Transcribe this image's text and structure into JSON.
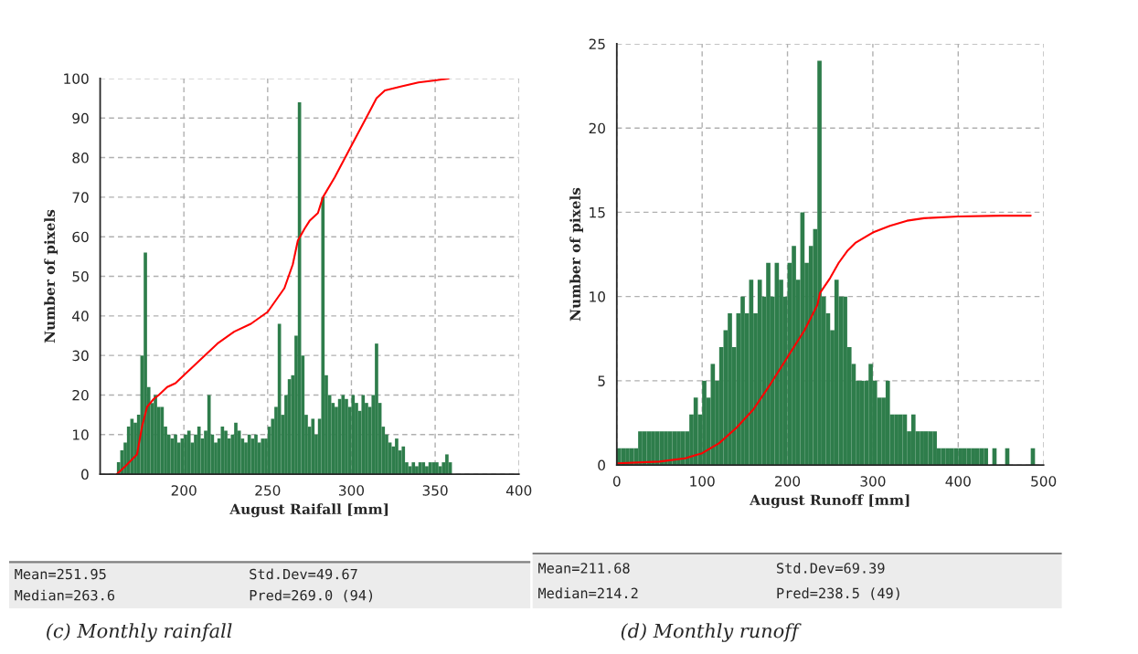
{
  "chart_data": [
    {
      "type": "histogram",
      "xlabel": "August Raifall [mm]",
      "ylabel": "Number of pixels",
      "series": [
        {
          "color": "#2e7d4b",
          "bins": [
            160,
            162,
            164,
            166,
            168,
            170,
            172,
            174,
            176,
            178,
            180,
            182,
            184,
            186,
            188,
            190,
            192,
            194,
            196,
            198,
            200,
            202,
            204,
            206,
            208,
            210,
            212,
            214,
            216,
            218,
            220,
            222,
            224,
            226,
            228,
            230,
            232,
            234,
            236,
            238,
            240,
            242,
            244,
            246,
            248,
            250,
            252,
            254,
            256,
            258,
            260,
            262,
            264,
            266,
            268,
            270,
            272,
            274,
            276,
            278,
            280,
            282,
            284,
            286,
            288,
            290,
            292,
            294,
            296,
            298,
            300,
            302,
            304,
            306,
            308,
            310,
            312,
            314,
            316,
            318,
            320,
            322,
            324,
            326,
            328,
            330,
            332,
            334,
            336,
            338,
            340,
            342,
            344,
            346,
            348,
            350,
            352,
            354,
            356,
            358,
            360
          ],
          "values": [
            3,
            6,
            8,
            12,
            14,
            13,
            15,
            30,
            56,
            22,
            18,
            20,
            17,
            17,
            12,
            10,
            9,
            10,
            8,
            9,
            10,
            11,
            8,
            10,
            12,
            9,
            11,
            20,
            10,
            8,
            9,
            12,
            11,
            9,
            10,
            13,
            11,
            9,
            8,
            10,
            9,
            10,
            8,
            9,
            9,
            12,
            14,
            17,
            38,
            15,
            20,
            24,
            25,
            35,
            94,
            30,
            15,
            12,
            14,
            10,
            14,
            70,
            25,
            20,
            18,
            17,
            19,
            20,
            19,
            17,
            20,
            18,
            16,
            20,
            18,
            17,
            20,
            33,
            18,
            12,
            10,
            8,
            7,
            9,
            6,
            7,
            3,
            2,
            3,
            2,
            3,
            3,
            2,
            3,
            3,
            3,
            2,
            3,
            5,
            3
          ]
        },
        {
          "type": "line",
          "color": "#ff0000",
          "x": [
            160,
            165,
            172,
            175,
            178,
            182,
            185,
            190,
            195,
            200,
            210,
            220,
            230,
            240,
            250,
            255,
            260,
            265,
            268,
            272,
            275,
            280,
            283,
            290,
            300,
            305,
            310,
            315,
            320,
            330,
            340,
            350,
            358
          ],
          "values": [
            0,
            2,
            5,
            12,
            17,
            19,
            20,
            22,
            23,
            25,
            29,
            33,
            36,
            38,
            41,
            44,
            47,
            53,
            59,
            62,
            64,
            66,
            70,
            75,
            83,
            87,
            91,
            95,
            97,
            98,
            99,
            99.5,
            100
          ]
        }
      ],
      "xlim": [
        150,
        400
      ],
      "xticks": [
        200,
        250,
        300,
        350,
        400
      ],
      "ylim": [
        0,
        100
      ],
      "yticks": [
        0,
        10,
        20,
        30,
        40,
        50,
        60,
        70,
        80,
        90,
        100
      ],
      "grid": true,
      "annotations": [
        "Mean=251.95",
        "Std.Dev=49.67",
        "Median=263.6",
        "Pred=269.0 (94)",
        "(c) Monthly rainfall"
      ]
    },
    {
      "type": "histogram",
      "xlabel": "August Runoff [mm]",
      "ylabel": "Number of pixels",
      "series": [
        {
          "color": "#2e7d4b",
          "bins": [
            0,
            5,
            10,
            15,
            20,
            25,
            30,
            35,
            40,
            45,
            50,
            55,
            60,
            65,
            70,
            75,
            80,
            85,
            90,
            95,
            100,
            105,
            110,
            115,
            120,
            125,
            130,
            135,
            140,
            145,
            150,
            155,
            160,
            165,
            170,
            175,
            180,
            185,
            190,
            195,
            200,
            205,
            210,
            215,
            220,
            225,
            230,
            235,
            240,
            245,
            250,
            255,
            260,
            265,
            270,
            275,
            280,
            285,
            290,
            295,
            300,
            305,
            310,
            315,
            320,
            325,
            330,
            335,
            340,
            345,
            350,
            355,
            360,
            365,
            370,
            375,
            380,
            385,
            390,
            395,
            400,
            405,
            410,
            415,
            420,
            425,
            430,
            435,
            440,
            445,
            450,
            455,
            460,
            465,
            470,
            475,
            480,
            485,
            490
          ],
          "values": [
            1,
            1,
            1,
            1,
            1,
            2,
            2,
            2,
            2,
            2,
            2,
            2,
            2,
            2,
            2,
            2,
            2,
            3,
            4,
            3,
            5,
            4,
            6,
            5,
            7,
            8,
            9,
            7,
            9,
            10,
            9,
            11,
            9,
            11,
            10,
            12,
            10,
            12,
            11,
            10,
            12,
            13,
            11,
            15,
            12,
            13,
            14,
            24,
            10,
            9,
            8,
            11,
            10,
            10,
            7,
            6,
            5,
            5,
            5,
            6,
            5,
            4,
            4,
            5,
            3,
            3,
            3,
            3,
            2,
            3,
            2,
            2,
            2,
            2,
            2,
            1,
            1,
            1,
            1,
            1,
            1,
            1,
            1,
            1,
            1,
            1,
            1,
            0,
            1,
            0,
            0,
            1,
            0,
            0,
            0,
            0,
            0,
            1
          ]
        },
        {
          "type": "line",
          "color": "#ff0000",
          "x": [
            0,
            50,
            80,
            100,
            120,
            140,
            160,
            180,
            200,
            220,
            235,
            238,
            250,
            260,
            270,
            280,
            300,
            320,
            340,
            360,
            400,
            450,
            485
          ],
          "values": [
            0.1,
            0.2,
            0.4,
            0.7,
            1.3,
            2.2,
            3.3,
            4.8,
            6.4,
            8.0,
            9.5,
            10.2,
            11.1,
            12.0,
            12.7,
            13.2,
            13.8,
            14.2,
            14.5,
            14.65,
            14.75,
            14.8,
            14.8
          ]
        }
      ],
      "xlim": [
        0,
        500
      ],
      "xticks": [
        0,
        100,
        200,
        300,
        400,
        500
      ],
      "ylim": [
        0,
        25
      ],
      "yticks": [
        0,
        5,
        10,
        15,
        20,
        25
      ],
      "grid": true,
      "annotations": [
        "Mean=211.68",
        "Std.Dev=69.39",
        "Median=214.2",
        "Pred=238.5 (49)",
        "(d) Monthly runoff"
      ]
    }
  ]
}
